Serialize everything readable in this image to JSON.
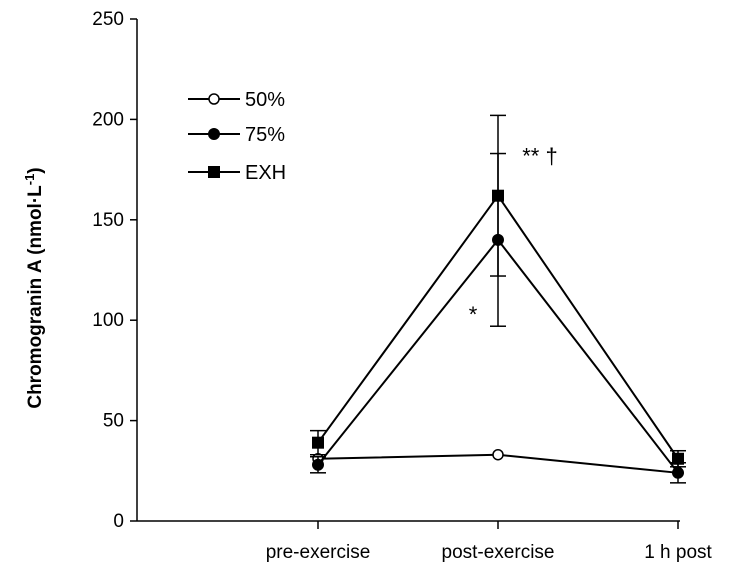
{
  "chart_data": {
    "type": "line",
    "title": "",
    "xlabel": "",
    "ylabel": "Chromogranin A (nmol·L",
    "ylabel_superscript": "-1",
    "ylabel_suffix": ")",
    "categories": [
      "pre-exercise",
      "post-exercise",
      "1 h post"
    ],
    "ylim": [
      0,
      250
    ],
    "yticks": [
      0,
      50,
      100,
      150,
      200,
      250
    ],
    "grid": false,
    "legend_position": "top-left",
    "series": [
      {
        "name": "50%",
        "marker": "open-circle",
        "values": [
          31,
          33,
          24
        ],
        "error": [
          null,
          null,
          null
        ]
      },
      {
        "name": "75%",
        "marker": "filled-circle",
        "values": [
          28,
          140,
          24
        ],
        "error": [
          4,
          43,
          5
        ]
      },
      {
        "name": "EXH",
        "marker": "filled-square",
        "values": [
          39,
          162,
          31
        ],
        "error": [
          6,
          40,
          4
        ]
      }
    ],
    "annotations": [
      {
        "text": "** †",
        "category": "post-exercise",
        "y": 182
      },
      {
        "text": "*",
        "category": "post-exercise",
        "y": 103
      }
    ]
  }
}
